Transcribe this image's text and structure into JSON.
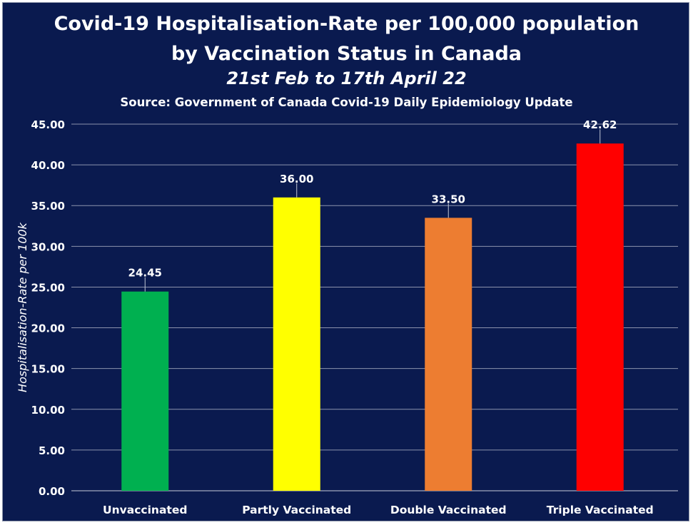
{
  "chart_data": {
    "type": "bar",
    "title_line1": "Covid-19 Hospitalisation-Rate per 100,000 population",
    "title_line2": "by Vaccination Status in Canada",
    "subtitle": "21st Feb to 17th April 22",
    "source": "Source: Government of Canada Covid-19 Daily Epidemiology Update",
    "ylabel": "Hospitalisation-Rate per 100k",
    "xlabel": "",
    "ylim": [
      0,
      45
    ],
    "yticks": [
      "0.00",
      "5.00",
      "10.00",
      "15.00",
      "20.00",
      "25.00",
      "30.00",
      "35.00",
      "40.00",
      "45.00"
    ],
    "categories": [
      "Unvaccinated",
      "Partly Vaccinated",
      "Double Vaccinated",
      "Triple Vaccinated"
    ],
    "values": [
      24.45,
      36.0,
      33.5,
      42.62
    ],
    "value_labels": [
      "24.45",
      "36.00",
      "33.50",
      "42.62"
    ],
    "colors": [
      "#00b050",
      "#ffff00",
      "#ed7d31",
      "#ff0000"
    ],
    "background": "#0a1a4f",
    "grid": true,
    "legend": "none"
  }
}
